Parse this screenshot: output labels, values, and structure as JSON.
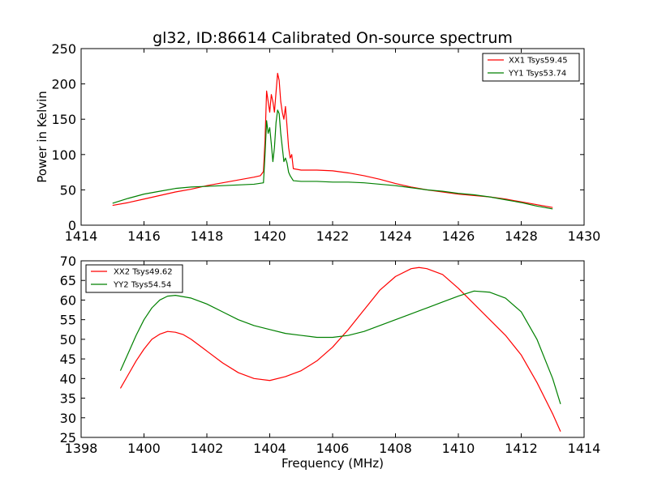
{
  "chart_data": [
    {
      "type": "line",
      "title": "gl32, ID:86614 Calibrated On-source spectrum",
      "xlabel": "",
      "ylabel": "Power in Kelvin",
      "xlim": [
        1414,
        1430
      ],
      "ylim": [
        0,
        250
      ],
      "xticks": [
        1414,
        1416,
        1418,
        1420,
        1422,
        1424,
        1426,
        1428,
        1430
      ],
      "yticks": [
        0,
        50,
        100,
        150,
        200,
        250
      ],
      "grid": false,
      "legend_position": "top-right",
      "series": [
        {
          "name": "XX1 Tsys59.45",
          "color": "#ff0000",
          "points": [
            [
              1415.0,
              28
            ],
            [
              1415.5,
              32
            ],
            [
              1416.0,
              37
            ],
            [
              1416.5,
              42
            ],
            [
              1417.0,
              47
            ],
            [
              1417.5,
              51
            ],
            [
              1418.0,
              56
            ],
            [
              1418.5,
              60
            ],
            [
              1419.0,
              64
            ],
            [
              1419.5,
              68
            ],
            [
              1419.7,
              70
            ],
            [
              1419.8,
              76
            ],
            [
              1419.85,
              120
            ],
            [
              1419.9,
              190
            ],
            [
              1419.95,
              175
            ],
            [
              1420.0,
              160
            ],
            [
              1420.05,
              185
            ],
            [
              1420.1,
              175
            ],
            [
              1420.15,
              160
            ],
            [
              1420.2,
              188
            ],
            [
              1420.25,
              215
            ],
            [
              1420.3,
              205
            ],
            [
              1420.35,
              175
            ],
            [
              1420.4,
              160
            ],
            [
              1420.45,
              150
            ],
            [
              1420.5,
              168
            ],
            [
              1420.55,
              140
            ],
            [
              1420.6,
              110
            ],
            [
              1420.65,
              95
            ],
            [
              1420.7,
              100
            ],
            [
              1420.75,
              80
            ],
            [
              1421.0,
              78
            ],
            [
              1421.5,
              78
            ],
            [
              1422.0,
              77
            ],
            [
              1422.5,
              74
            ],
            [
              1423.0,
              70
            ],
            [
              1423.5,
              65
            ],
            [
              1424.0,
              59
            ],
            [
              1424.5,
              54
            ],
            [
              1425.0,
              50
            ],
            [
              1425.5,
              47
            ],
            [
              1426.0,
              44
            ],
            [
              1426.5,
              42
            ],
            [
              1427.0,
              40
            ],
            [
              1427.5,
              37
            ],
            [
              1428.0,
              33
            ],
            [
              1428.5,
              29
            ],
            [
              1429.0,
              25
            ]
          ]
        },
        {
          "name": "YY1 Tsys53.74",
          "color": "#008000",
          "points": [
            [
              1415.0,
              31
            ],
            [
              1415.5,
              38
            ],
            [
              1416.0,
              44
            ],
            [
              1416.5,
              48
            ],
            [
              1417.0,
              52
            ],
            [
              1417.5,
              54
            ],
            [
              1418.0,
              55
            ],
            [
              1418.5,
              56
            ],
            [
              1419.0,
              57
            ],
            [
              1419.5,
              58
            ],
            [
              1419.8,
              60
            ],
            [
              1419.85,
              100
            ],
            [
              1419.9,
              148
            ],
            [
              1419.95,
              130
            ],
            [
              1420.0,
              138
            ],
            [
              1420.05,
              115
            ],
            [
              1420.1,
              90
            ],
            [
              1420.15,
              110
            ],
            [
              1420.2,
              145
            ],
            [
              1420.25,
              163
            ],
            [
              1420.3,
              158
            ],
            [
              1420.35,
              130
            ],
            [
              1420.4,
              110
            ],
            [
              1420.45,
              90
            ],
            [
              1420.5,
              95
            ],
            [
              1420.55,
              88
            ],
            [
              1420.6,
              75
            ],
            [
              1420.65,
              70
            ],
            [
              1420.75,
              63
            ],
            [
              1421.0,
              62
            ],
            [
              1421.5,
              62
            ],
            [
              1422.0,
              61
            ],
            [
              1422.5,
              61
            ],
            [
              1423.0,
              60
            ],
            [
              1423.5,
              58
            ],
            [
              1424.0,
              56
            ],
            [
              1424.5,
              53
            ],
            [
              1425.0,
              50
            ],
            [
              1425.5,
              48
            ],
            [
              1426.0,
              45
            ],
            [
              1426.5,
              43
            ],
            [
              1427.0,
              40
            ],
            [
              1427.5,
              36
            ],
            [
              1428.0,
              32
            ],
            [
              1428.5,
              27
            ],
            [
              1429.0,
              23
            ]
          ]
        }
      ]
    },
    {
      "type": "line",
      "title": "",
      "xlabel": "Frequency (MHz)",
      "ylabel": "",
      "xlim": [
        1398,
        1414
      ],
      "ylim": [
        25,
        70
      ],
      "xticks": [
        1398,
        1400,
        1402,
        1404,
        1406,
        1408,
        1410,
        1412,
        1414
      ],
      "yticks": [
        25,
        30,
        35,
        40,
        45,
        50,
        55,
        60,
        65,
        70
      ],
      "grid": false,
      "legend_position": "top-left",
      "series": [
        {
          "name": "XX2 Tsys49.62",
          "color": "#ff0000",
          "points": [
            [
              1399.25,
              37.5
            ],
            [
              1399.5,
              41
            ],
            [
              1399.75,
              44.5
            ],
            [
              1400.0,
              47.5
            ],
            [
              1400.25,
              50
            ],
            [
              1400.5,
              51.3
            ],
            [
              1400.75,
              52
            ],
            [
              1401.0,
              51.8
            ],
            [
              1401.25,
              51.2
            ],
            [
              1401.5,
              50
            ],
            [
              1402.0,
              47
            ],
            [
              1402.5,
              44
            ],
            [
              1403.0,
              41.5
            ],
            [
              1403.5,
              40
            ],
            [
              1404.0,
              39.5
            ],
            [
              1404.5,
              40.5
            ],
            [
              1405.0,
              42
            ],
            [
              1405.5,
              44.5
            ],
            [
              1406.0,
              48
            ],
            [
              1406.5,
              52.5
            ],
            [
              1407.0,
              57.5
            ],
            [
              1407.5,
              62.5
            ],
            [
              1408.0,
              66
            ],
            [
              1408.5,
              68
            ],
            [
              1408.75,
              68.3
            ],
            [
              1409.0,
              68
            ],
            [
              1409.5,
              66.5
            ],
            [
              1410.0,
              63
            ],
            [
              1410.5,
              59
            ],
            [
              1411.0,
              55
            ],
            [
              1411.5,
              51
            ],
            [
              1412.0,
              46
            ],
            [
              1412.5,
              39
            ],
            [
              1413.0,
              31
            ],
            [
              1413.25,
              26.5
            ]
          ]
        },
        {
          "name": "YY2 Tsys54.54",
          "color": "#008000",
          "points": [
            [
              1399.25,
              42
            ],
            [
              1399.5,
              46.5
            ],
            [
              1399.75,
              51
            ],
            [
              1400.0,
              55
            ],
            [
              1400.25,
              58
            ],
            [
              1400.5,
              60
            ],
            [
              1400.75,
              61
            ],
            [
              1401.0,
              61.2
            ],
            [
              1401.5,
              60.5
            ],
            [
              1402.0,
              59
            ],
            [
              1402.5,
              57
            ],
            [
              1403.0,
              55
            ],
            [
              1403.5,
              53.5
            ],
            [
              1404.0,
              52.5
            ],
            [
              1404.5,
              51.5
            ],
            [
              1405.0,
              51
            ],
            [
              1405.5,
              50.5
            ],
            [
              1406.0,
              50.5
            ],
            [
              1406.5,
              51
            ],
            [
              1407.0,
              52
            ],
            [
              1407.5,
              53.5
            ],
            [
              1408.0,
              55
            ],
            [
              1408.5,
              56.5
            ],
            [
              1409.0,
              58
            ],
            [
              1409.5,
              59.5
            ],
            [
              1410.0,
              61
            ],
            [
              1410.5,
              62.3
            ],
            [
              1411.0,
              62
            ],
            [
              1411.5,
              60.5
            ],
            [
              1412.0,
              57
            ],
            [
              1412.5,
              50
            ],
            [
              1413.0,
              40
            ],
            [
              1413.25,
              33.5
            ]
          ]
        }
      ]
    }
  ]
}
